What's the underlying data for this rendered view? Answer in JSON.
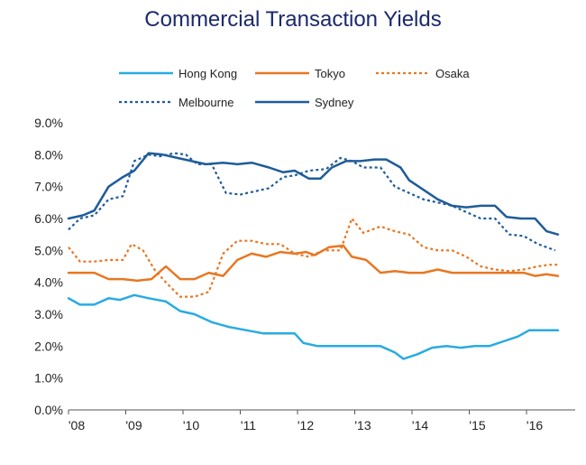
{
  "chart_data": {
    "type": "line",
    "title": "Commercial Transaction Yields",
    "xlabel": "",
    "ylabel": "",
    "ylim": [
      0,
      9
    ],
    "xlim": [
      2008,
      2016.85
    ],
    "y_ticks": [
      "0.0%",
      "1.0%",
      "2.0%",
      "3.0%",
      "4.0%",
      "5.0%",
      "6.0%",
      "7.0%",
      "8.0%",
      "9.0%"
    ],
    "x_ticks": [
      {
        "label": "'08",
        "value": 2008
      },
      {
        "label": "'09",
        "value": 2009
      },
      {
        "label": "'10",
        "value": 2010
      },
      {
        "label": "'11",
        "value": 2011
      },
      {
        "label": "'12",
        "value": 2012
      },
      {
        "label": "'13",
        "value": 2013
      },
      {
        "label": "'14",
        "value": 2014
      },
      {
        "label": "'15",
        "value": 2015
      },
      {
        "label": "'16",
        "value": 2016
      }
    ],
    "grid": false,
    "legend_position": "top",
    "series": [
      {
        "name": "Hong Kong",
        "color": "#29abe2",
        "dash": "solid",
        "points": [
          [
            2008.0,
            3.5
          ],
          [
            2008.2,
            3.3
          ],
          [
            2008.45,
            3.3
          ],
          [
            2008.7,
            3.5
          ],
          [
            2008.9,
            3.45
          ],
          [
            2009.15,
            3.6
          ],
          [
            2009.4,
            3.5
          ],
          [
            2009.7,
            3.4
          ],
          [
            2009.95,
            3.1
          ],
          [
            2010.2,
            3.0
          ],
          [
            2010.5,
            2.75
          ],
          [
            2010.8,
            2.6
          ],
          [
            2011.1,
            2.5
          ],
          [
            2011.4,
            2.4
          ],
          [
            2011.7,
            2.4
          ],
          [
            2011.95,
            2.4
          ],
          [
            2012.1,
            2.1
          ],
          [
            2012.35,
            2.0
          ],
          [
            2012.6,
            2.0
          ],
          [
            2012.9,
            2.0
          ],
          [
            2013.2,
            2.0
          ],
          [
            2013.45,
            2.0
          ],
          [
            2013.7,
            1.8
          ],
          [
            2013.85,
            1.6
          ],
          [
            2014.1,
            1.75
          ],
          [
            2014.35,
            1.95
          ],
          [
            2014.6,
            2.0
          ],
          [
            2014.85,
            1.95
          ],
          [
            2015.1,
            2.0
          ],
          [
            2015.35,
            2.0
          ],
          [
            2015.6,
            2.15
          ],
          [
            2015.85,
            2.3
          ],
          [
            2016.05,
            2.5
          ],
          [
            2016.3,
            2.5
          ],
          [
            2016.55,
            2.5
          ]
        ]
      },
      {
        "name": "Tokyo",
        "color": "#e87722",
        "dash": "solid",
        "points": [
          [
            2008.0,
            4.3
          ],
          [
            2008.2,
            4.3
          ],
          [
            2008.45,
            4.3
          ],
          [
            2008.7,
            4.1
          ],
          [
            2008.95,
            4.1
          ],
          [
            2009.2,
            4.05
          ],
          [
            2009.45,
            4.1
          ],
          [
            2009.7,
            4.5
          ],
          [
            2009.95,
            4.1
          ],
          [
            2010.2,
            4.1
          ],
          [
            2010.45,
            4.3
          ],
          [
            2010.7,
            4.2
          ],
          [
            2010.95,
            4.7
          ],
          [
            2011.2,
            4.9
          ],
          [
            2011.45,
            4.8
          ],
          [
            2011.7,
            4.95
          ],
          [
            2011.95,
            4.9
          ],
          [
            2012.15,
            4.95
          ],
          [
            2012.3,
            4.85
          ],
          [
            2012.55,
            5.1
          ],
          [
            2012.8,
            5.15
          ],
          [
            2012.95,
            4.8
          ],
          [
            2013.2,
            4.7
          ],
          [
            2013.45,
            4.3
          ],
          [
            2013.7,
            4.35
          ],
          [
            2013.95,
            4.3
          ],
          [
            2014.2,
            4.3
          ],
          [
            2014.45,
            4.4
          ],
          [
            2014.7,
            4.3
          ],
          [
            2014.95,
            4.3
          ],
          [
            2015.2,
            4.3
          ],
          [
            2015.45,
            4.3
          ],
          [
            2015.7,
            4.3
          ],
          [
            2015.95,
            4.3
          ],
          [
            2016.15,
            4.2
          ],
          [
            2016.35,
            4.25
          ],
          [
            2016.55,
            4.2
          ]
        ]
      },
      {
        "name": "Osaka",
        "color": "#e87722",
        "dash": "dotted",
        "points": [
          [
            2008.0,
            5.1
          ],
          [
            2008.2,
            4.65
          ],
          [
            2008.45,
            4.65
          ],
          [
            2008.7,
            4.7
          ],
          [
            2008.95,
            4.7
          ],
          [
            2009.1,
            5.2
          ],
          [
            2009.3,
            5.0
          ],
          [
            2009.5,
            4.4
          ],
          [
            2009.7,
            4.0
          ],
          [
            2009.95,
            3.55
          ],
          [
            2010.2,
            3.55
          ],
          [
            2010.45,
            3.7
          ],
          [
            2010.7,
            4.9
          ],
          [
            2010.95,
            5.3
          ],
          [
            2011.2,
            5.3
          ],
          [
            2011.45,
            5.2
          ],
          [
            2011.7,
            5.2
          ],
          [
            2011.95,
            4.9
          ],
          [
            2012.2,
            4.8
          ],
          [
            2012.45,
            5.0
          ],
          [
            2012.75,
            5.0
          ],
          [
            2012.95,
            6.0
          ],
          [
            2013.15,
            5.55
          ],
          [
            2013.45,
            5.75
          ],
          [
            2013.7,
            5.6
          ],
          [
            2013.95,
            5.5
          ],
          [
            2014.2,
            5.1
          ],
          [
            2014.45,
            5.0
          ],
          [
            2014.7,
            5.0
          ],
          [
            2014.95,
            4.8
          ],
          [
            2015.2,
            4.5
          ],
          [
            2015.45,
            4.4
          ],
          [
            2015.7,
            4.35
          ],
          [
            2015.95,
            4.4
          ],
          [
            2016.2,
            4.5
          ],
          [
            2016.4,
            4.55
          ],
          [
            2016.55,
            4.55
          ]
        ]
      },
      {
        "name": "Melbourne",
        "color": "#1f5c99",
        "dash": "dotted",
        "points": [
          [
            2008.0,
            5.65
          ],
          [
            2008.2,
            6.0
          ],
          [
            2008.45,
            6.1
          ],
          [
            2008.7,
            6.6
          ],
          [
            2008.95,
            6.7
          ],
          [
            2009.15,
            7.8
          ],
          [
            2009.4,
            8.0
          ],
          [
            2009.6,
            7.95
          ],
          [
            2009.85,
            8.05
          ],
          [
            2010.05,
            8.0
          ],
          [
            2010.25,
            7.7
          ],
          [
            2010.5,
            7.7
          ],
          [
            2010.75,
            6.8
          ],
          [
            2011.0,
            6.75
          ],
          [
            2011.25,
            6.85
          ],
          [
            2011.5,
            6.95
          ],
          [
            2011.75,
            7.3
          ],
          [
            2011.95,
            7.35
          ],
          [
            2012.2,
            7.5
          ],
          [
            2012.5,
            7.55
          ],
          [
            2012.75,
            7.9
          ],
          [
            2012.95,
            7.8
          ],
          [
            2013.15,
            7.6
          ],
          [
            2013.45,
            7.6
          ],
          [
            2013.7,
            7.0
          ],
          [
            2013.95,
            6.8
          ],
          [
            2014.2,
            6.6
          ],
          [
            2014.45,
            6.5
          ],
          [
            2014.7,
            6.4
          ],
          [
            2014.95,
            6.2
          ],
          [
            2015.2,
            6.0
          ],
          [
            2015.45,
            6.0
          ],
          [
            2015.7,
            5.5
          ],
          [
            2015.95,
            5.45
          ],
          [
            2016.2,
            5.2
          ],
          [
            2016.5,
            5.0
          ]
        ]
      },
      {
        "name": "Sydney",
        "color": "#1f5c99",
        "dash": "solid",
        "points": [
          [
            2008.0,
            6.0
          ],
          [
            2008.25,
            6.1
          ],
          [
            2008.45,
            6.25
          ],
          [
            2008.7,
            7.0
          ],
          [
            2008.95,
            7.3
          ],
          [
            2009.15,
            7.5
          ],
          [
            2009.4,
            8.05
          ],
          [
            2009.65,
            8.0
          ],
          [
            2009.9,
            7.9
          ],
          [
            2010.15,
            7.8
          ],
          [
            2010.4,
            7.7
          ],
          [
            2010.7,
            7.75
          ],
          [
            2010.95,
            7.7
          ],
          [
            2011.2,
            7.75
          ],
          [
            2011.5,
            7.6
          ],
          [
            2011.75,
            7.45
          ],
          [
            2011.95,
            7.5
          ],
          [
            2012.2,
            7.25
          ],
          [
            2012.4,
            7.25
          ],
          [
            2012.6,
            7.6
          ],
          [
            2012.85,
            7.8
          ],
          [
            2013.1,
            7.8
          ],
          [
            2013.35,
            7.85
          ],
          [
            2013.55,
            7.85
          ],
          [
            2013.8,
            7.6
          ],
          [
            2013.95,
            7.2
          ],
          [
            2014.2,
            6.9
          ],
          [
            2014.45,
            6.6
          ],
          [
            2014.7,
            6.4
          ],
          [
            2014.95,
            6.35
          ],
          [
            2015.2,
            6.4
          ],
          [
            2015.45,
            6.4
          ],
          [
            2015.65,
            6.05
          ],
          [
            2015.9,
            6.0
          ],
          [
            2016.15,
            6.0
          ],
          [
            2016.35,
            5.6
          ],
          [
            2016.55,
            5.5
          ]
        ]
      }
    ]
  }
}
